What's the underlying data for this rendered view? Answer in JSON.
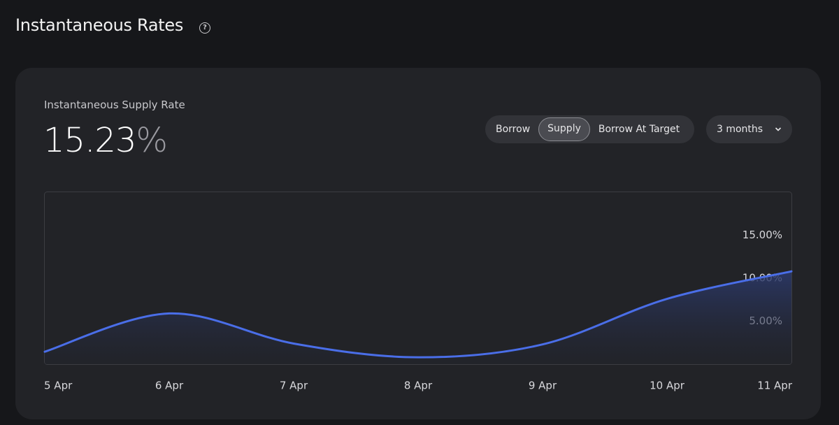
{
  "header": {
    "title": "Instantaneous Rates"
  },
  "panel": {
    "label": "Instantaneous Supply Rate",
    "value": "15.23",
    "unit": "%",
    "tabs": [
      "Borrow",
      "Supply",
      "Borrow At Target"
    ],
    "selected_tab": 1,
    "range": "3 months"
  },
  "chart_data": {
    "type": "area",
    "categories": [
      "5 Apr",
      "6 Apr",
      "7 Apr",
      "8 Apr",
      "9 Apr",
      "10 Apr",
      "11 Apr"
    ],
    "values": [
      1.45,
      5.9,
      2.4,
      0.8,
      2.3,
      7.6,
      10.8
    ],
    "color": "#4a6ee8",
    "ylim": [
      0,
      20
    ],
    "yticks": [
      {
        "value": 5,
        "label": "5.00%"
      },
      {
        "value": 10,
        "label": "10.00%"
      },
      {
        "value": 15,
        "label": "15.00%"
      }
    ],
    "grid": false
  }
}
